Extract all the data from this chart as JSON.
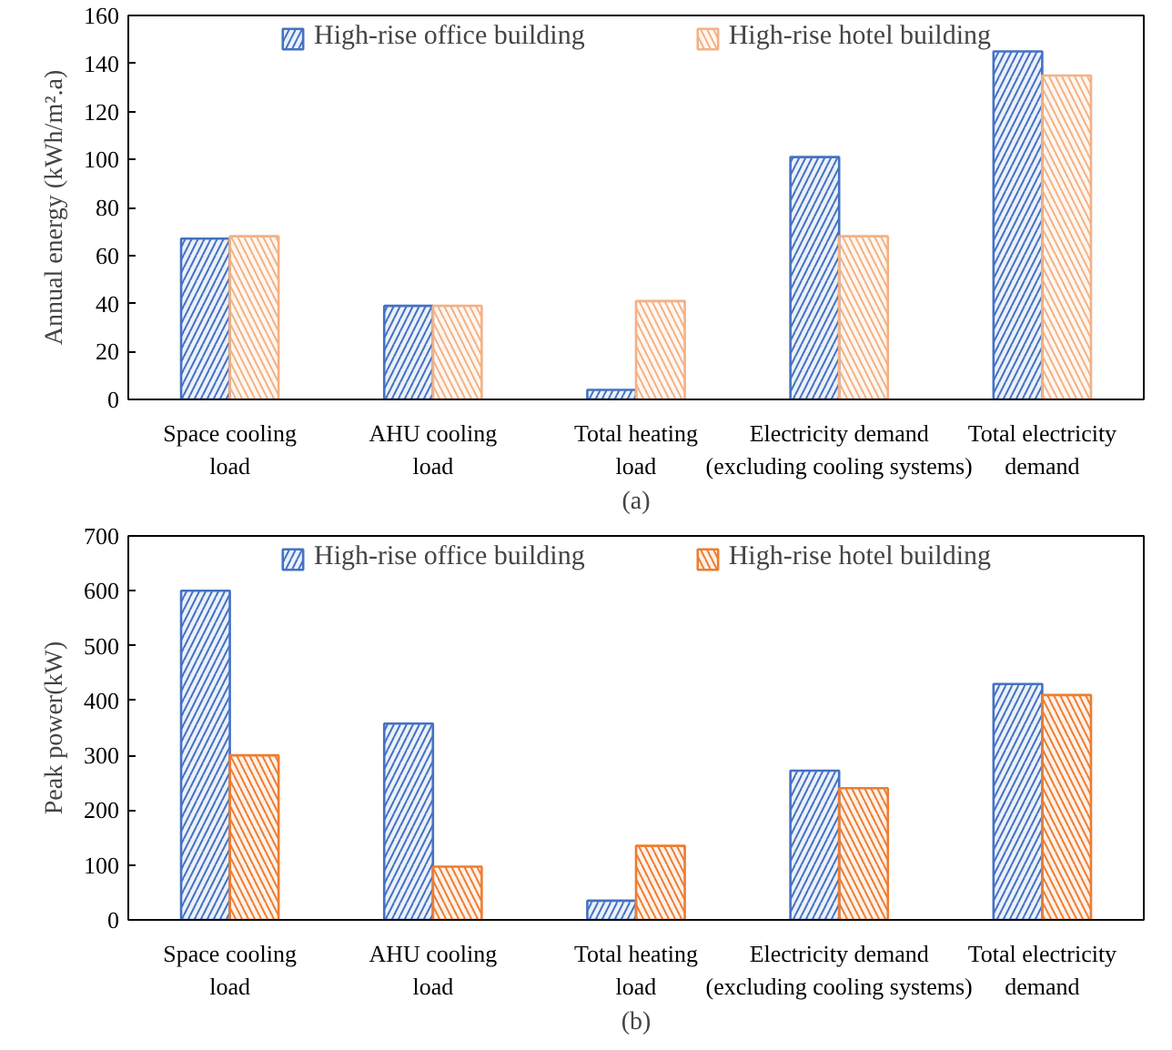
{
  "chart_data": [
    {
      "type": "bar",
      "xlabel": "(a)",
      "ylabel": "Annual energy (kWh/m².a)",
      "categories": [
        "Space cooling\nload",
        "AHU cooling\nload",
        "Total heating\nload",
        "Electricity demand\n(excluding cooling systems)",
        "Total electricity\ndemand"
      ],
      "series": [
        {
          "name": "High-rise office building",
          "color": "#4472c4",
          "values": [
            67,
            39,
            4,
            101,
            145
          ]
        },
        {
          "name": "High-rise hotel building",
          "color": "#f4b183",
          "values": [
            68,
            39,
            41,
            68,
            135
          ]
        }
      ],
      "ylim": [
        0,
        160
      ],
      "yticks": [
        0,
        20,
        40,
        60,
        80,
        100,
        120,
        140,
        160
      ],
      "grid": false,
      "legend": "top"
    },
    {
      "type": "bar",
      "xlabel": "(b)",
      "ylabel": "Peak power(kW)",
      "categories": [
        "Space cooling\nload",
        "AHU cooling\nload",
        "Total heating\nload",
        "Electricity demand\n(excluding cooling systems)",
        "Total electricity\ndemand"
      ],
      "series": [
        {
          "name": "High-rise office building",
          "color": "#4472c4",
          "values": [
            600,
            358,
            35,
            272,
            430
          ]
        },
        {
          "name": "High-rise hotel building",
          "color": "#ed7d31",
          "values": [
            300,
            97,
            135,
            240,
            410
          ]
        }
      ],
      "ylim": [
        0,
        700
      ],
      "yticks": [
        0,
        100,
        200,
        300,
        400,
        500,
        600,
        700
      ],
      "grid": false,
      "legend": "top"
    }
  ]
}
